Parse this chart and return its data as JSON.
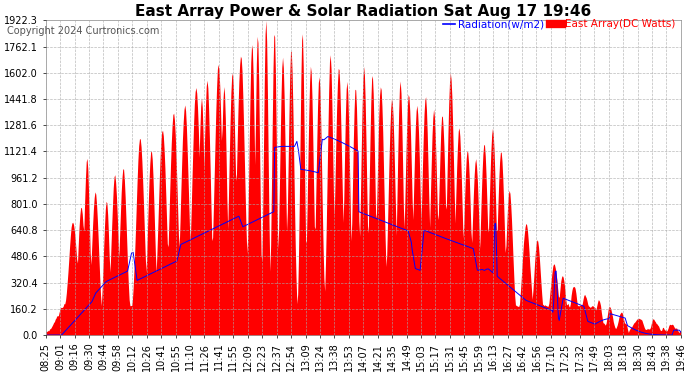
{
  "title": "East Array Power & Solar Radiation Sat Aug 17 19:46",
  "copyright": "Copyright 2024 Curtronics.com",
  "legend_radiation": "Radiation(w/m2)",
  "legend_array": "East Array(DC Watts)",
  "legend_radiation_color": "#0000FF",
  "legend_array_color": "#FF0000",
  "ylabel_values": [
    0.0,
    160.2,
    320.4,
    480.6,
    640.8,
    801.0,
    961.2,
    1121.4,
    1281.6,
    1441.8,
    1602.0,
    1762.1,
    1922.3
  ],
  "ylim": [
    0.0,
    1922.3
  ],
  "background_color": "#ffffff",
  "plot_bg_color": "#ffffff",
  "grid_color": "#aaaaaa",
  "title_fontsize": 11,
  "tick_fontsize": 7,
  "copyright_fontsize": 7,
  "x_tick_labels": [
    "08:25",
    "09:01",
    "09:16",
    "09:30",
    "09:44",
    "09:58",
    "10:12",
    "10:26",
    "10:41",
    "10:55",
    "11:10",
    "11:26",
    "11:41",
    "11:55",
    "12:09",
    "12:23",
    "12:37",
    "12:54",
    "13:09",
    "13:24",
    "13:38",
    "13:53",
    "14:07",
    "14:21",
    "14:35",
    "14:49",
    "15:03",
    "15:17",
    "15:31",
    "15:45",
    "15:59",
    "16:13",
    "16:27",
    "16:42",
    "16:56",
    "17:10",
    "17:25",
    "17:32",
    "17:49",
    "18:03",
    "18:18",
    "18:30",
    "18:43",
    "19:38",
    "19:46"
  ],
  "red_fill_color": "#FF0000",
  "blue_line_color": "#0000FF"
}
